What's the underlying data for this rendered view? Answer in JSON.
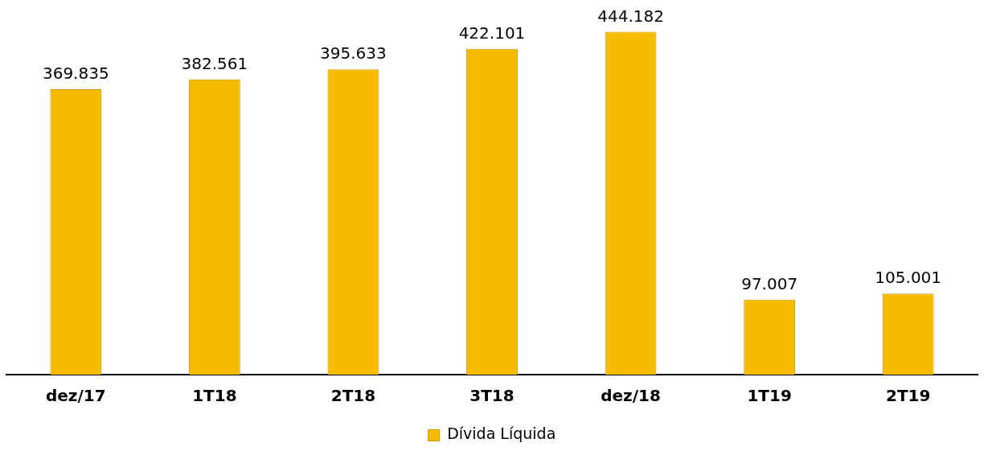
{
  "chart_data": {
    "type": "bar",
    "categories": [
      "dez/17",
      "1T18",
      "2T18",
      "3T18",
      "dez/18",
      "1T19",
      "2T19"
    ],
    "series": [
      {
        "name": "Dívida Líquida",
        "color": "#f5bc00",
        "values": [
          369835,
          382561,
          395633,
          422101,
          444182,
          97007,
          105001
        ],
        "value_labels": [
          "369.835",
          "382.561",
          "395.633",
          "422.101",
          "444.182",
          "97.007",
          "105.001"
        ]
      }
    ],
    "tick_labels": "x",
    "grid": false,
    "legend": "bottom"
  }
}
